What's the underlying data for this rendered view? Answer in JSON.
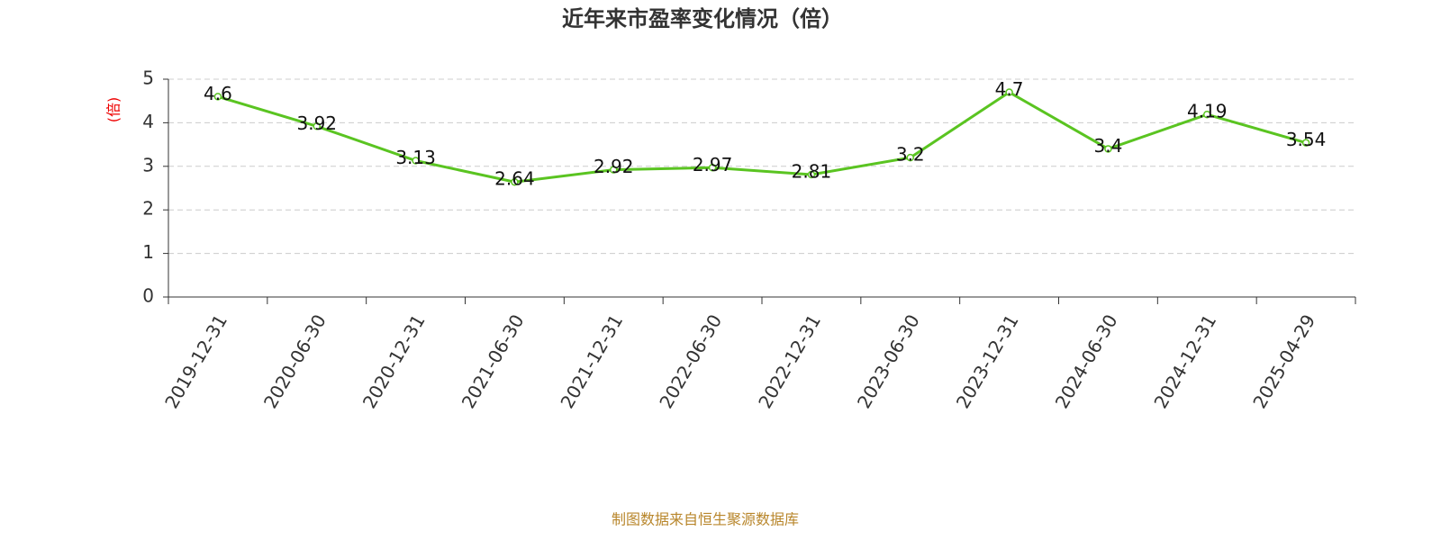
{
  "chart_data": {
    "type": "line",
    "title": "近年来市盈率变化情况（倍）",
    "y_label": "(倍)",
    "source": "制图数据来自恒生聚源数据库",
    "categories": [
      "2019-12-31",
      "2020-06-30",
      "2020-12-31",
      "2021-06-30",
      "2021-12-31",
      "2022-06-30",
      "2022-12-31",
      "2023-06-30",
      "2023-12-31",
      "2024-06-30",
      "2024-12-31",
      "2025-04-29"
    ],
    "values": [
      4.6,
      3.92,
      3.13,
      2.64,
      2.92,
      2.97,
      2.81,
      3.2,
      4.7,
      3.4,
      4.19,
      3.54
    ],
    "color": "#5ac421",
    "ylim": [
      0,
      5
    ],
    "yticks": [
      0,
      1,
      2,
      3,
      4,
      5
    ],
    "grid": true
  }
}
